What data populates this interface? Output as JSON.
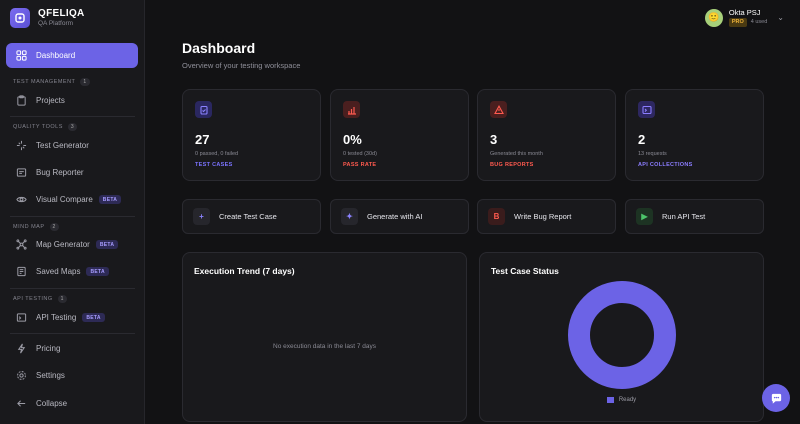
{
  "brand": {
    "name": "QFELIQA",
    "subtitle": "QA Platform"
  },
  "sidebar": {
    "dashboard": "Dashboard",
    "sections": [
      {
        "label": "TEST MANAGEMENT",
        "count": "1"
      },
      {
        "label": "QUALITY TOOLS",
        "count": "3"
      },
      {
        "label": "MIND MAP",
        "count": "2"
      },
      {
        "label": "API TESTING",
        "count": "1"
      }
    ],
    "items": {
      "projects": "Projects",
      "test_generator": "Test Generator",
      "bug_reporter": "Bug Reporter",
      "visual_compare": "Visual Compare",
      "map_generator": "Map Generator",
      "saved_maps": "Saved Maps",
      "api_testing": "API Testing",
      "pricing": "Pricing",
      "settings": "Settings",
      "collapse": "Collapse"
    },
    "beta": "BETA"
  },
  "user": {
    "name": "Okta PSJ",
    "plan": "PRO",
    "usage": "4 used"
  },
  "header": {
    "title": "Dashboard",
    "subtitle": "Overview of your testing workspace"
  },
  "stats": [
    {
      "value": "27",
      "detail": "0 passed, 0 failed",
      "label": "TEST CASES",
      "color": "#7b73ff"
    },
    {
      "value": "0%",
      "detail": "0 tested (30d)",
      "label": "PASS RATE",
      "color": "#ff5a4f"
    },
    {
      "value": "3",
      "detail": "Generated this month",
      "label": "BUG REPORTS",
      "color": "#ff5a4f"
    },
    {
      "value": "2",
      "detail": "13 requests",
      "label": "API COLLECTIONS",
      "color": "#8b7dff"
    }
  ],
  "actions": [
    {
      "label": "Create Test Case",
      "icon": "+"
    },
    {
      "label": "Generate with AI",
      "icon": "✦"
    },
    {
      "label": "Write Bug Report",
      "icon": "B"
    },
    {
      "label": "Run API Test",
      "icon": "▶"
    }
  ],
  "panels": {
    "trend_title": "Execution Trend (7 days)",
    "trend_empty": "No execution data in the last 7 days",
    "status_title": "Test Case Status",
    "legend_label": "Ready"
  },
  "chart_data": {
    "type": "pie",
    "title": "Test Case Status",
    "labels": [
      "Ready"
    ],
    "values": [
      27
    ],
    "colors": [
      "#6c63e6"
    ]
  }
}
